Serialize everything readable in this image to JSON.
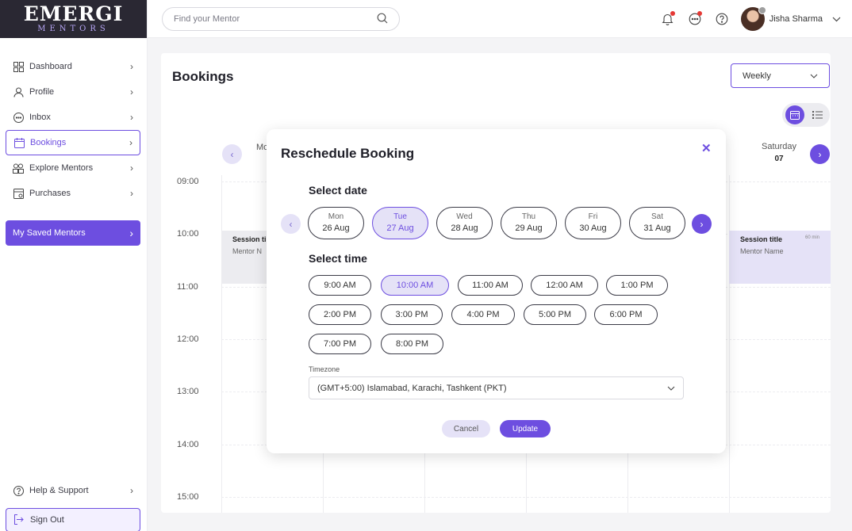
{
  "brand": {
    "line1": "EMERGI",
    "line2": "MENTORS"
  },
  "sidebar": {
    "items": [
      {
        "label": "Dashboard",
        "icon": "dashboard-icon"
      },
      {
        "label": "Profile",
        "icon": "user-icon"
      },
      {
        "label": "Inbox",
        "icon": "chat-icon"
      },
      {
        "label": "Bookings",
        "icon": "calendar-icon",
        "active": true
      },
      {
        "label": "Explore Mentors",
        "icon": "people-icon"
      },
      {
        "label": "Purchases",
        "icon": "purchases-icon"
      }
    ],
    "saved_label": "My Saved Mentors",
    "help_label": "Help & Support",
    "signout_label": "Sign Out"
  },
  "header": {
    "search_placeholder": "Find your Mentor",
    "user_name": "Jisha Sharma"
  },
  "main": {
    "title": "Bookings",
    "view_select": "Weekly",
    "day_start": "Mo",
    "day_end_name": "Saturday",
    "day_end_date": "07",
    "hours": [
      "09:00",
      "10:00",
      "11:00",
      "12:00",
      "13:00",
      "14:00",
      "15:00"
    ],
    "sessions": [
      {
        "title": "Session ti",
        "mentor": "Mentor N",
        "duration": ""
      },
      {
        "title": "Session title",
        "mentor": "Mentor Name",
        "duration": "60 min"
      }
    ]
  },
  "modal": {
    "title": "Reschedule Booking",
    "close": "✕",
    "select_date_label": "Select date",
    "dates": [
      {
        "day": "Mon",
        "date": "26 Aug"
      },
      {
        "day": "Tue",
        "date": "27 Aug",
        "selected": true
      },
      {
        "day": "Wed",
        "date": "28 Aug"
      },
      {
        "day": "Thu",
        "date": "29 Aug"
      },
      {
        "day": "Fri",
        "date": "30 Aug"
      },
      {
        "day": "Sat",
        "date": "31 Aug"
      }
    ],
    "select_time_label": "Select time",
    "times": [
      "9:00 AM",
      "10:00 AM",
      "11:00 AM",
      "12:00 AM",
      "1:00 PM",
      "2:00 PM",
      "3:00 PM",
      "4:00 PM",
      "5:00 PM",
      "6:00 PM",
      "7:00 PM",
      "8:00 PM"
    ],
    "selected_time": "10:00 AM",
    "timezone_label": "Timezone",
    "timezone_value": "(GMT+5:00) Islamabad, Karachi, Tashkent (PKT)",
    "cancel_label": "Cancel",
    "update_label": "Update"
  },
  "colors": {
    "accent": "#6d4ee0",
    "accent_light": "#e5e2f7",
    "sidebar_dark": "#2a2833"
  }
}
